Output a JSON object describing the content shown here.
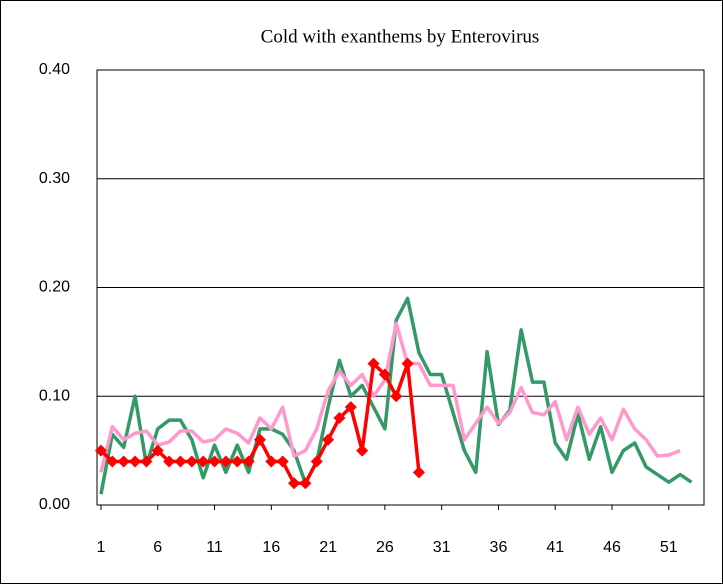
{
  "chart_data": {
    "type": "line",
    "title": "Cold with exanthems by Enterovirus",
    "x": [
      1,
      2,
      3,
      4,
      5,
      6,
      7,
      8,
      9,
      10,
      11,
      12,
      13,
      14,
      15,
      16,
      17,
      18,
      19,
      20,
      21,
      22,
      23,
      24,
      25,
      26,
      27,
      28,
      29,
      30,
      31,
      32,
      33,
      34,
      35,
      36,
      37,
      38,
      39,
      40,
      41,
      42,
      43,
      44,
      45,
      46,
      47,
      48,
      49,
      50,
      51,
      52,
      53
    ],
    "series": [
      {
        "color": "#339966",
        "marker": false,
        "values": [
          0.01,
          0.065,
          0.053,
          0.1,
          0.037,
          0.07,
          0.078,
          0.078,
          0.06,
          0.025,
          0.055,
          0.03,
          0.055,
          0.03,
          0.07,
          0.07,
          0.065,
          0.05,
          0.02,
          0.04,
          0.09,
          0.133,
          0.1,
          0.11,
          0.09,
          0.07,
          0.17,
          0.19,
          0.14,
          0.12,
          0.12,
          0.085,
          0.05,
          0.03,
          0.141,
          0.074,
          0.087,
          0.161,
          0.113,
          0.113,
          0.057,
          0.042,
          0.084,
          0.042,
          0.072,
          0.03,
          0.05,
          0.057,
          0.035,
          0.028,
          0.021,
          0.028,
          0.021
        ]
      },
      {
        "color": "#ff99cc",
        "marker": false,
        "values": [
          0.03,
          0.072,
          0.06,
          0.066,
          0.068,
          0.055,
          0.058,
          0.068,
          0.068,
          0.058,
          0.06,
          0.07,
          0.066,
          0.057,
          0.08,
          0.07,
          0.09,
          0.045,
          0.05,
          0.07,
          0.105,
          0.123,
          0.11,
          0.12,
          0.1,
          0.115,
          0.167,
          0.13,
          0.13,
          0.11,
          0.11,
          0.11,
          0.06,
          0.075,
          0.09,
          0.075,
          0.085,
          0.108,
          0.085,
          0.083,
          0.095,
          0.06,
          0.09,
          0.065,
          0.08,
          0.06,
          0.088,
          0.07,
          0.06,
          0.045,
          0.046,
          0.05,
          null
        ]
      },
      {
        "color": "#ff0000",
        "marker": true,
        "values": [
          0.05,
          0.04,
          0.04,
          0.04,
          0.04,
          0.05,
          0.04,
          0.04,
          0.04,
          0.04,
          0.04,
          0.04,
          0.04,
          0.04,
          0.06,
          0.04,
          0.04,
          0.02,
          0.02,
          0.04,
          0.06,
          0.08,
          0.09,
          0.05,
          0.13,
          0.12,
          0.1,
          0.13,
          0.03,
          null,
          null,
          null,
          null,
          null,
          null,
          null,
          null,
          null,
          null,
          null,
          null,
          null,
          null,
          null,
          null,
          null,
          null,
          null,
          null,
          null,
          null,
          null,
          null
        ]
      }
    ],
    "xlim": [
      0.65,
      54.1
    ],
    "xticks": [
      1,
      6,
      11,
      16,
      21,
      26,
      31,
      36,
      41,
      46,
      51
    ],
    "ylim": [
      0,
      0.4
    ],
    "yticks": [
      {
        "value": 0,
        "label": "0.00"
      },
      {
        "value": 0.1,
        "label": "0.10"
      },
      {
        "value": 0.2,
        "label": "0.20"
      },
      {
        "value": 0.3,
        "label": "0.30"
      },
      {
        "value": 0.4,
        "label": "0.40"
      }
    ],
    "grid": true
  }
}
